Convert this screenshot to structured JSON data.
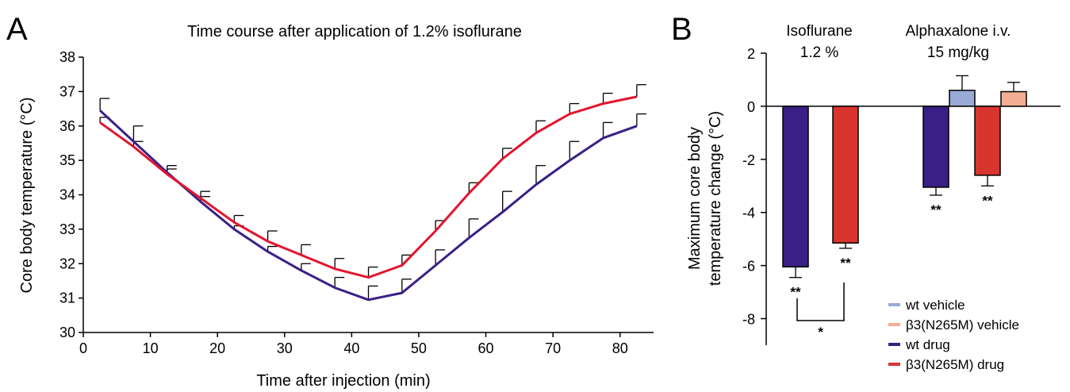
{
  "panel_a_letter": "A",
  "panel_b_letter": "B",
  "chart_data": [
    {
      "type": "line",
      "title": "Time course after application of 1.2% isoflurane",
      "xlabel": "Time after injection (min)",
      "ylabel": "Core body temperature (°C)",
      "xlim": [
        0,
        85
      ],
      "ylim": [
        30,
        38
      ],
      "xticks": [
        0,
        10,
        20,
        30,
        40,
        50,
        60,
        70,
        80
      ],
      "yticks": [
        30,
        31,
        32,
        33,
        34,
        35,
        36,
        37,
        38
      ],
      "grid": false,
      "x": [
        2.5,
        7.5,
        12.5,
        17.5,
        22.5,
        27.5,
        32.5,
        37.5,
        42.5,
        47.5,
        52.5,
        57.5,
        62.5,
        67.5,
        72.5,
        77.5,
        82.5
      ],
      "series": [
        {
          "color": "#3a1f86",
          "values": [
            36.45,
            35.55,
            34.65,
            33.8,
            33.0,
            32.35,
            31.8,
            31.3,
            30.95,
            31.15,
            31.95,
            32.75,
            33.5,
            34.3,
            35.0,
            35.65,
            36.0
          ],
          "error": [
            0.35,
            0.45,
            0.2,
            0.15,
            0.1,
            0.15,
            0.2,
            0.3,
            0.4,
            0.4,
            0.45,
            0.55,
            0.6,
            0.55,
            0.55,
            0.45,
            0.35
          ]
        },
        {
          "color": "#e3142e",
          "values": [
            36.1,
            35.4,
            34.6,
            33.9,
            33.2,
            32.65,
            32.25,
            31.85,
            31.6,
            31.95,
            32.95,
            34.05,
            35.05,
            35.8,
            36.35,
            36.65,
            36.85
          ],
          "error": [
            0.15,
            0.15,
            0.15,
            0.2,
            0.2,
            0.3,
            0.3,
            0.3,
            0.3,
            0.3,
            0.3,
            0.3,
            0.3,
            0.35,
            0.3,
            0.3,
            0.35
          ]
        }
      ]
    },
    {
      "type": "bar",
      "ylabel": "Maximum core body temperature change (°C)",
      "ylim": [
        -9,
        2
      ],
      "yticks": [
        2,
        0,
        -2,
        -4,
        -6,
        -8
      ],
      "grid": false,
      "group_labels": [
        "Isoflurane\n1.2 %",
        "Alphaxalone i.v.\n15 mg/kg"
      ],
      "bars": [
        {
          "group": 0,
          "series": "wt drug",
          "value": -6.05,
          "error": 0.4,
          "label": "**"
        },
        {
          "group": 0,
          "series": "β3(N265M) drug",
          "value": -5.15,
          "error": 0.2,
          "label": "**"
        },
        {
          "group": 1,
          "series": "wt drug",
          "value": -3.05,
          "error": 0.3,
          "label": "**"
        },
        {
          "group": 1,
          "series": "wt vehicle",
          "value": 0.6,
          "error": 0.55,
          "label": ""
        },
        {
          "group": 1,
          "series": "β3(N265M) drug",
          "value": -2.6,
          "error": 0.4,
          "label": "**"
        },
        {
          "group": 1,
          "series": "β3(N265M) vehicle",
          "value": 0.55,
          "error": 0.35,
          "label": ""
        }
      ],
      "comparison": {
        "label": "*",
        "between": [
          "wt drug",
          "β3(N265M) drug"
        ],
        "group": 0
      },
      "legend": {
        "position": "bottom-right",
        "entries": [
          {
            "label": "wt vehicle",
            "color": "#9aaad6"
          },
          {
            "label": "β3(N265M) vehicle",
            "color": "#f3ae94"
          },
          {
            "label": "wt drug",
            "color": "#3a1f86"
          },
          {
            "label": "β3(N265M) drug",
            "color": "#d8352f"
          }
        ]
      }
    }
  ]
}
